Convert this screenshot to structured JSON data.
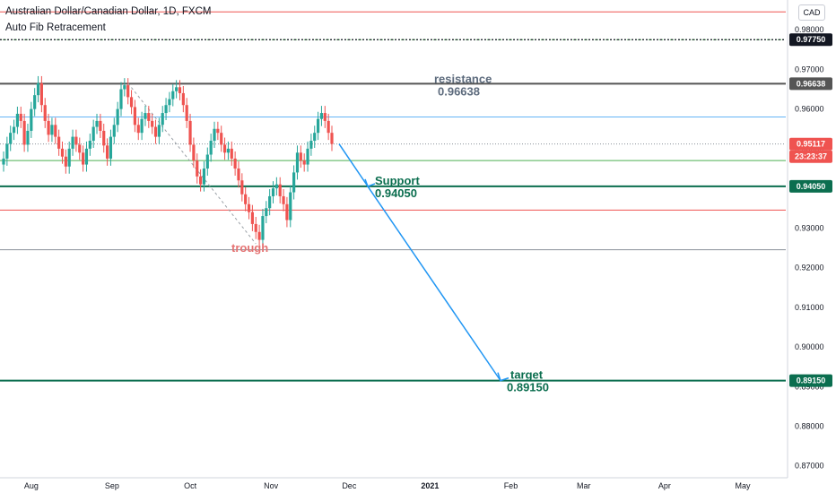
{
  "header": {
    "title": "Australian Dollar/Canadian Dollar, 1D, FXCM",
    "indicator": "Auto Fib Retracement"
  },
  "currency_button": "CAD",
  "colors": {
    "bull": "#26a69a",
    "bear": "#ef5350",
    "support": "#0b6e4f",
    "annotation_green": "#0b6e4f",
    "resistance_text": "#5d6b7d",
    "trough_text": "#e57373",
    "arrow": "#2196f3",
    "last_price_tag": "#ef5350"
  },
  "chart_data": {
    "type": "candlestick",
    "y_axis": {
      "range": [
        0.867,
        0.9875
      ],
      "ticks": [
        "0.98000",
        "0.97000",
        "0.96000",
        "0.95000",
        "0.94000",
        "0.93000",
        "0.92000",
        "0.91000",
        "0.90000",
        "0.89000",
        "0.88000",
        "0.87000"
      ]
    },
    "x_axis": {
      "ticks": [
        "Aug",
        "Sep",
        "Oct",
        "Nov",
        "Dec",
        "2021",
        "Feb",
        "Mar",
        "Apr",
        "May"
      ],
      "tick_values": [
        20200801,
        20200901,
        20201001,
        20201101,
        20201201,
        20210101,
        20210201,
        20210301,
        20210401,
        20210501
      ]
    },
    "closes": [
      0.9475,
      0.9512,
      0.954,
      0.9555,
      0.9588,
      0.957,
      0.951,
      0.9545,
      0.96,
      0.9635,
      0.9665,
      0.961,
      0.957,
      0.9535,
      0.956,
      0.953,
      0.95,
      0.948,
      0.9455,
      0.95,
      0.953,
      0.951,
      0.949,
      0.946,
      0.95,
      0.952,
      0.9555,
      0.957,
      0.9545,
      0.9508,
      0.9475,
      0.953,
      0.956,
      0.96,
      0.965,
      0.966,
      0.963,
      0.9605,
      0.956,
      0.954,
      0.9575,
      0.959,
      0.957,
      0.9555,
      0.953,
      0.956,
      0.959,
      0.961,
      0.9625,
      0.9645,
      0.9655,
      0.964,
      0.961,
      0.957,
      0.951,
      0.947,
      0.943,
      0.941,
      0.945,
      0.9485,
      0.952,
      0.955,
      0.954,
      0.951,
      0.949,
      0.95,
      0.9475,
      0.945,
      0.942,
      0.9385,
      0.936,
      0.934,
      0.931,
      0.929,
      0.927,
      0.933,
      0.935,
      0.938,
      0.94,
      0.941,
      0.938,
      0.936,
      0.932,
      0.939,
      0.944,
      0.949,
      0.947,
      0.946,
      0.95,
      0.952,
      0.954,
      0.9575,
      0.959,
      0.957,
      0.954,
      0.9512
    ],
    "horizontal_levels": [
      {
        "value": 0.9845,
        "color": "#ef5350",
        "style": "solid"
      },
      {
        "value": 0.9775,
        "color": "#4caf50",
        "style": "dotted"
      },
      {
        "value": 0.9775,
        "label": "0.97750",
        "color": "#131722",
        "style": "dotted-dark",
        "tag": true
      },
      {
        "value": 0.96638,
        "label": "0.96638",
        "color": "#555555",
        "style": "thick",
        "tag": true
      },
      {
        "value": 0.958,
        "color": "#64b5f6",
        "style": "solid"
      },
      {
        "value": 0.9512,
        "color": "#8a9199",
        "style": "dotted"
      },
      {
        "value": 0.947,
        "color": "#4caf50",
        "style": "solid"
      },
      {
        "value": 0.9405,
        "label": "0.94050",
        "color": "#0b6e4f",
        "style": "thick",
        "tag": true
      },
      {
        "value": 0.9345,
        "color": "#ef5350",
        "style": "solid"
      },
      {
        "value": 0.9245,
        "color": "#8a9199",
        "style": "solid"
      },
      {
        "value": 0.8915,
        "label": "0.89150",
        "color": "#0b6e4f",
        "style": "thick",
        "tag": true
      }
    ],
    "last_price": {
      "label": "0.95117",
      "countdown": "23:23:37",
      "value": 0.95117
    },
    "annotations": [
      {
        "text": "resistance",
        "value": "0.96638"
      },
      {
        "text": "Support",
        "value": "0.94050"
      },
      {
        "text": "target",
        "value": "0.89150"
      },
      {
        "text": "trough"
      }
    ],
    "projection_arrow": {
      "from_value": 0.9512,
      "to_value": 0.8915
    }
  }
}
